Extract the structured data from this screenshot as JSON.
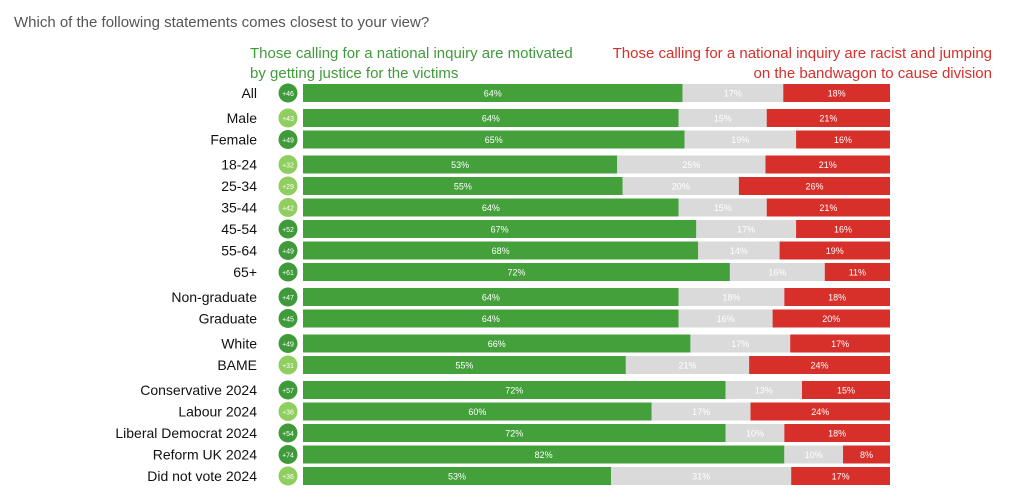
{
  "question": "Which of the following statements comes closest to your view?",
  "legend": {
    "left": "Those calling for a national inquiry are motivated by getting justice for the victims",
    "right": "Those calling for a national inquiry are racist and jumping on the bandwagon to cause division"
  },
  "colors": {
    "green": "#43a03a",
    "grey": "#dadada",
    "red": "#d72f2a",
    "badge_dark": "#3f9b3a",
    "badge_light": "#8fce5f"
  },
  "chart_data": {
    "type": "bar",
    "orientation": "horizontal",
    "stacked": true,
    "xlim": [
      0,
      100
    ],
    "categories": [
      "All",
      "Male",
      "Female",
      "18-24",
      "25-34",
      "35-44",
      "45-54",
      "55-64",
      "65+",
      "Non-graduate",
      "Graduate",
      "White",
      "BAME",
      "Conservative 2024",
      "Labour 2024",
      "Liberal Democrat 2024",
      "Reform UK 2024",
      "Did not vote 2024"
    ],
    "groups": [
      1,
      2,
      6,
      2,
      2,
      5
    ],
    "net": [
      "+46",
      "+43",
      "+49",
      "+32",
      "+29",
      "+42",
      "+52",
      "+49",
      "+61",
      "+47",
      "+45",
      "+49",
      "+31",
      "+57",
      "+36",
      "+54",
      "+74",
      "+36"
    ],
    "series": [
      {
        "name": "Those calling for a national inquiry are motivated by getting justice for the victims",
        "color": "#43a03a",
        "label_color": "#ffffff",
        "values": [
          64,
          64,
          65,
          53,
          55,
          64,
          67,
          68,
          72,
          64,
          64,
          66,
          55,
          72,
          60,
          72,
          82,
          53
        ]
      },
      {
        "name": "",
        "color": "#dadada",
        "label_color": "#ffffff",
        "values": [
          17,
          15,
          19,
          25,
          20,
          15,
          17,
          14,
          16,
          18,
          16,
          17,
          21,
          13,
          17,
          10,
          10,
          31
        ]
      },
      {
        "name": "Those calling for a national inquiry are racist and jumping on the bandwagon to cause division",
        "color": "#d72f2a",
        "label_color": "#ffffff",
        "values": [
          18,
          21,
          16,
          21,
          26,
          21,
          16,
          19,
          11,
          18,
          20,
          17,
          24,
          15,
          24,
          18,
          8,
          17
        ]
      }
    ]
  }
}
